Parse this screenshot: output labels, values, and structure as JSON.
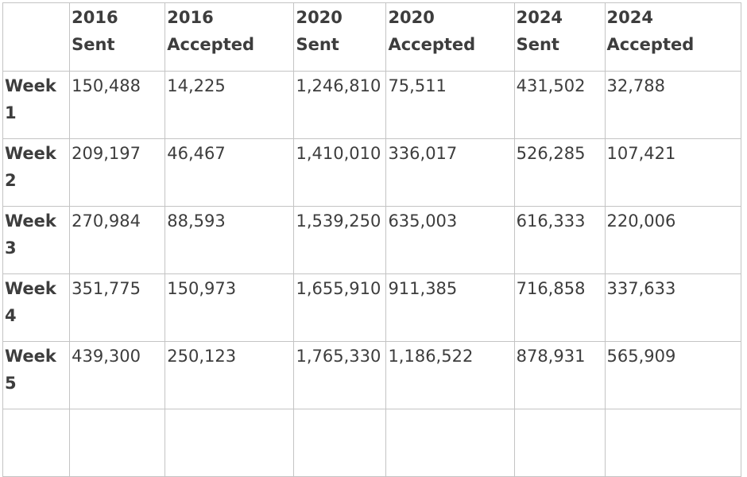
{
  "table": {
    "corner": "",
    "headers": [
      {
        "year": "2016",
        "kind": "Sent"
      },
      {
        "year": "2016",
        "kind": "Accepted"
      },
      {
        "year": "2020",
        "kind": "Sent"
      },
      {
        "year": "2020",
        "kind": "Accepted"
      },
      {
        "year": "2024",
        "kind": "Sent"
      },
      {
        "year": "2024",
        "kind": "Accepted"
      }
    ],
    "rows": [
      {
        "label": "Week 1",
        "cells": [
          "150,488",
          "14,225",
          "1,246,810",
          "75,511",
          "431,502",
          "32,788"
        ]
      },
      {
        "label": "Week 2",
        "cells": [
          "209,197",
          "46,467",
          "1,410,010",
          "336,017",
          "526,285",
          "107,421"
        ]
      },
      {
        "label": "Week 3",
        "cells": [
          "270,984",
          "88,593",
          "1,539,250",
          "635,003",
          "616,333",
          "220,006"
        ]
      },
      {
        "label": "Week 4",
        "cells": [
          "351,775",
          "150,973",
          "1,655,910",
          "911,385",
          "716,858",
          "337,633"
        ]
      },
      {
        "label": "Week 5",
        "cells": [
          "439,300",
          "250,123",
          "1,765,330",
          "1,186,522",
          "878,931",
          "565,909"
        ]
      }
    ]
  }
}
